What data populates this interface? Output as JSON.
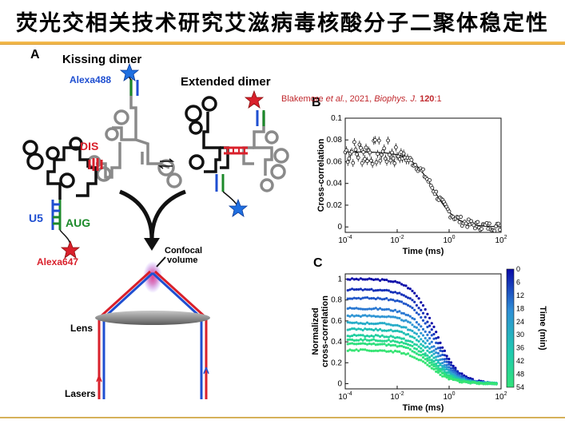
{
  "slide_title": "荧光交相关技术研究艾滋病毒核酸分子二聚体稳定性",
  "citation": {
    "authors": "Blakemore ",
    "etal": "et al.",
    "year": ", 2021, ",
    "journal": "Biophys. J.",
    "volume": " 120",
    "page": ":1"
  },
  "panel_a": {
    "letter": "A",
    "kissing_label": "Kissing dimer",
    "extended_label": "Extended dimer",
    "alexa488": "Alexa488",
    "alexa647": "Alexa647",
    "dis": "DIS",
    "u5": "U5",
    "aug": "AUG",
    "confocal": "Confocal",
    "volume": "volume",
    "lens": "Lens",
    "lasers": "Lasers"
  },
  "colors": {
    "blue": "#1f4fd1",
    "red": "#d9202b",
    "green": "#1c8a2a",
    "rna_black": "#111111",
    "rna_gray": "#8a8a8a"
  },
  "chart_data": [
    {
      "panel": "B",
      "type": "scatter",
      "xlabel": "Time (ms)",
      "ylabel": "Cross-correlation",
      "xscale": "log",
      "xlim": [
        0.0001,
        100
      ],
      "ylim": [
        -0.005,
        0.1
      ],
      "x_ticks": [
        "10^-4",
        "10^-2",
        "10^0",
        "10^2"
      ],
      "y_ticks": [
        "0",
        "0.02",
        "0.04",
        "0.06",
        "0.08",
        "0.1"
      ],
      "error_bars": true,
      "fit_line": true,
      "x": [
        0.0001,
        0.0002,
        0.0004,
        0.0008,
        0.0015,
        0.003,
        0.006,
        0.012,
        0.025,
        0.05,
        0.1,
        0.2,
        0.4,
        0.8,
        1.5,
        3,
        6,
        12,
        25,
        50
      ],
      "y": [
        0.062,
        0.068,
        0.07,
        0.069,
        0.07,
        0.069,
        0.068,
        0.066,
        0.062,
        0.055,
        0.045,
        0.032,
        0.02,
        0.01,
        0.005,
        0.003,
        0.002,
        0.001,
        0.0,
        0.0
      ]
    },
    {
      "panel": "C",
      "type": "scatter",
      "xlabel": "Time (ms)",
      "ylabel": "Normalized cross-correlation",
      "xscale": "log",
      "xlim": [
        0.0001,
        100
      ],
      "ylim": [
        -0.05,
        1.05
      ],
      "x_ticks": [
        "10^-4",
        "10^-2",
        "10^0",
        "10^2"
      ],
      "y_ticks": [
        "0",
        "0.2",
        "0.4",
        "0.6",
        "0.8",
        "1"
      ],
      "colorbar": {
        "label": "Time (min)",
        "ticks": [
          "0",
          "6",
          "12",
          "18",
          "24",
          "30",
          "36",
          "42",
          "48",
          "54"
        ],
        "range": [
          0,
          54
        ],
        "colors": [
          "#0a0aa8",
          "#2f8fd6",
          "#20c9b0",
          "#32e27a"
        ]
      },
      "series_start_values": [
        1.0,
        0.9,
        0.82,
        0.72,
        0.65,
        0.58,
        0.52,
        0.46,
        0.42,
        0.38,
        0.32
      ]
    }
  ]
}
